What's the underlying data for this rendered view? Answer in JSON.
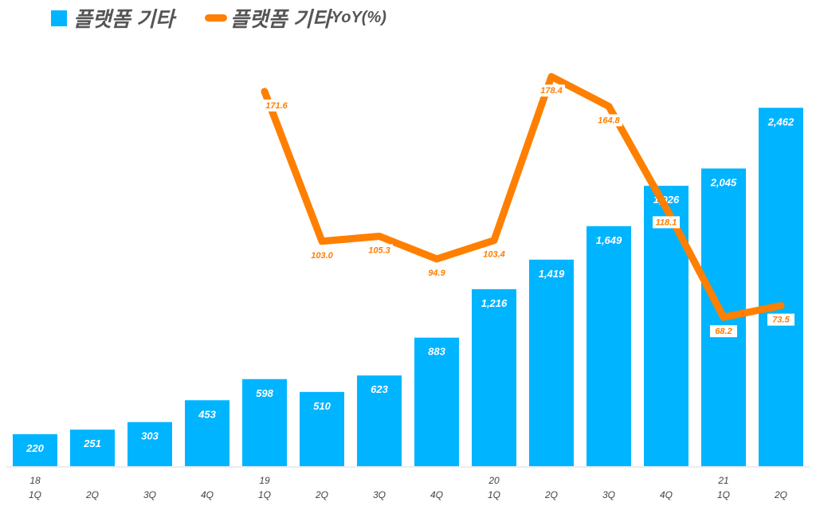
{
  "colors": {
    "bar": "#00B4FF",
    "line": "#FF7F00"
  },
  "chart_data": {
    "type": "bar+line",
    "title": "",
    "legend": {
      "position": "top-left"
    },
    "grid": false,
    "categories": [
      "1Q",
      "2Q",
      "3Q",
      "4Q",
      "1Q",
      "2Q",
      "3Q",
      "4Q",
      "1Q",
      "2Q",
      "3Q",
      "4Q",
      "1Q",
      "2Q"
    ],
    "year_labels": [
      "18",
      "",
      "",
      "",
      "19",
      "",
      "",
      "",
      "20",
      "",
      "",
      "",
      "21",
      ""
    ],
    "series": [
      {
        "name": "플랫폼 기타",
        "type": "bar",
        "axis": "primary",
        "values": [
          220,
          251,
          303,
          453,
          598,
          510,
          623,
          883,
          1216,
          1419,
          1649,
          1926,
          2045,
          2462
        ],
        "labels": [
          "220",
          "251",
          "303",
          "453",
          "598",
          "510",
          "623",
          "883",
          "1,216",
          "1,419",
          "1,649",
          "1,926",
          "2,045",
          "2,462"
        ]
      },
      {
        "name": "플랫폼 기타",
        "name_suffix": "YoY(%)",
        "type": "line",
        "axis": "secondary",
        "values": [
          null,
          null,
          null,
          null,
          171.6,
          103.0,
          105.3,
          94.9,
          103.4,
          178.4,
          164.8,
          118.1,
          68.2,
          73.5
        ],
        "labels": [
          "",
          "",
          "",
          "",
          "171.6",
          "103.0",
          "105.3",
          "94.9",
          "103.4",
          "178.4",
          "164.8",
          "118.1",
          "68.2",
          "73.5"
        ]
      }
    ],
    "ylim_primary": [
      0,
      3000
    ],
    "ylim_secondary": [
      0,
      200
    ]
  }
}
